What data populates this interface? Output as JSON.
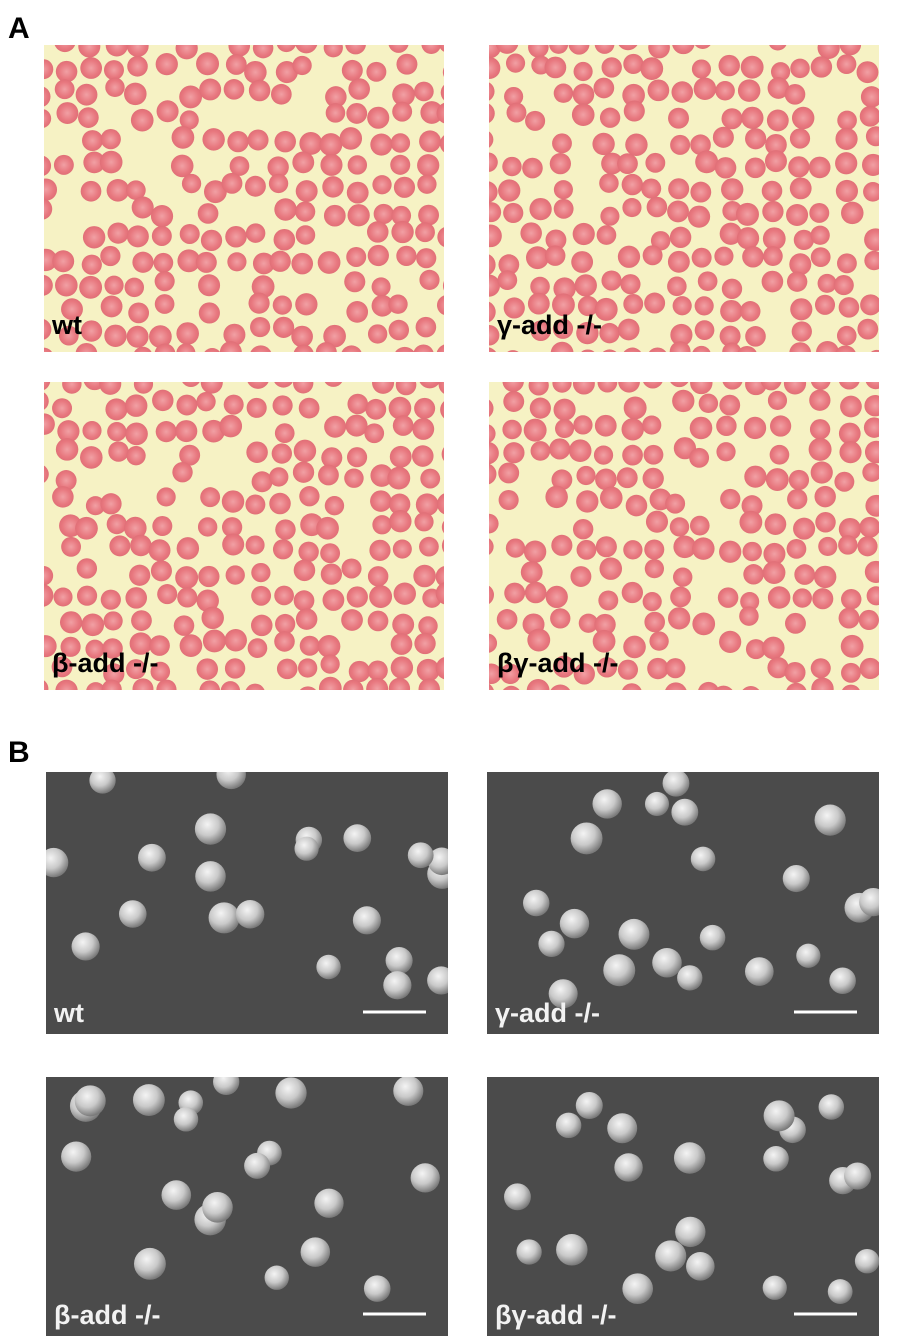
{
  "panels": [
    {
      "label": "A",
      "images": [
        {
          "label": "wt"
        },
        {
          "label": "γ-add -/-"
        },
        {
          "label": "β-add -/-"
        },
        {
          "label": "βγ-add -/-"
        }
      ]
    },
    {
      "label": "B",
      "images": [
        {
          "label": "wt"
        },
        {
          "label": "γ-add -/-"
        },
        {
          "label": "β-add -/-"
        },
        {
          "label": "βγ-add -/-"
        }
      ]
    }
  ]
}
